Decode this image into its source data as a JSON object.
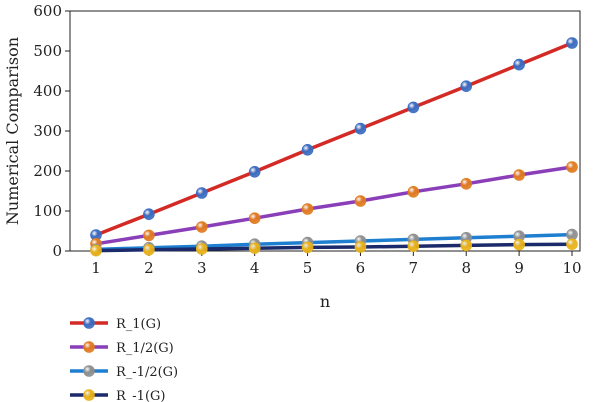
{
  "chart_data": {
    "type": "line",
    "title": "",
    "xlabel": "n",
    "ylabel": "Numerical Comparison",
    "x": [
      1,
      2,
      3,
      4,
      5,
      6,
      7,
      8,
      9,
      10
    ],
    "xlim": [
      1,
      10
    ],
    "ylim": [
      0,
      600
    ],
    "x_ticks": [
      "1",
      "2",
      "3",
      "4",
      "5",
      "6",
      "7",
      "8",
      "9",
      "10"
    ],
    "y_ticks": [
      "0",
      "100",
      "200",
      "300",
      "400",
      "500",
      "600"
    ],
    "grid": false,
    "legend_position": "bottom-left",
    "series": [
      {
        "name": "R_1(G)",
        "line_color": "#d42a26",
        "marker_color": "#3b6cc0",
        "values": [
          40,
          92,
          145,
          198,
          253,
          306,
          359,
          412,
          466,
          520
        ]
      },
      {
        "name": "R_1/2(G)",
        "line_color": "#8a3eb8",
        "marker_color": "#e07a20",
        "values": [
          18,
          39,
          60,
          82,
          105,
          125,
          148,
          168,
          190,
          210
        ]
      },
      {
        "name": "R_-1/2(G)",
        "line_color": "#1e7fd0",
        "marker_color": "#8f8f8f",
        "values": [
          4,
          8,
          12,
          17,
          21,
          25,
          29,
          33,
          37,
          41
        ]
      },
      {
        "name": "R_-1(G)",
        "line_color": "#1a2a6a",
        "marker_color": "#e8b21a",
        "values": [
          1,
          3,
          5,
          7,
          9,
          10,
          12,
          14,
          16,
          17
        ]
      }
    ]
  }
}
